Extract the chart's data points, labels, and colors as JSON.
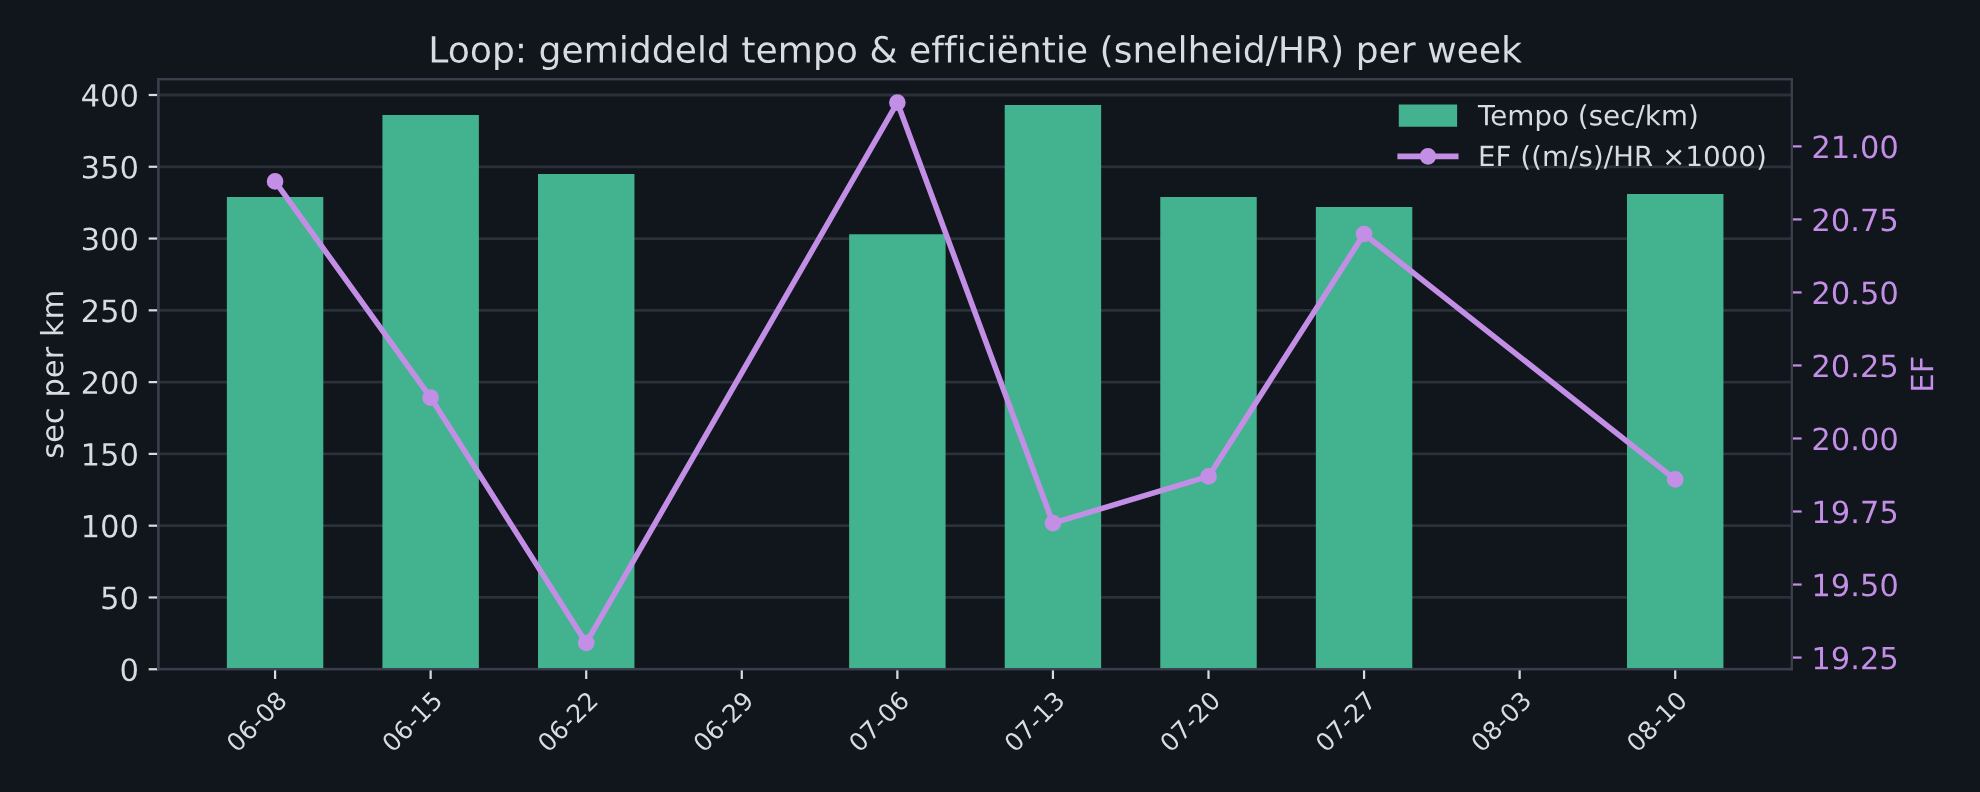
{
  "chart_data": {
    "type": "bar",
    "title": "Loop: gemiddeld tempo & efficiëntie (snelheid/HR) per week",
    "ylabel": "sec per km",
    "y2label": "EF",
    "categories": [
      "06-08",
      "06-15",
      "06-22",
      "06-29",
      "07-06",
      "07-13",
      "07-20",
      "07-27",
      "08-03",
      "08-10"
    ],
    "series": [
      {
        "name": "Tempo (sec/km)",
        "color": "#43b38f",
        "values": [
          329,
          386,
          345,
          null,
          303,
          393,
          329,
          322,
          null,
          331
        ]
      },
      {
        "name": "EF ((m/s)/HR ×1000)",
        "type": "line",
        "axis": "y2",
        "color": "#c38fe6",
        "marker": "circle",
        "line_style": "solid",
        "values": [
          20.88,
          20.14,
          19.3,
          null,
          21.15,
          19.71,
          19.87,
          20.7,
          null,
          19.86
        ]
      }
    ],
    "ylim": [
      0,
      411
    ],
    "yticks": [
      0,
      50,
      100,
      150,
      200,
      250,
      300,
      350,
      400
    ],
    "y2lim": [
      19.21,
      21.23
    ],
    "y2ticks": [
      {
        "value": 19.25,
        "label": "19.25"
      },
      {
        "value": 19.5,
        "label": "19.50"
      },
      {
        "value": 19.75,
        "label": "19.75"
      },
      {
        "value": 20.0,
        "label": "20.00"
      },
      {
        "value": 20.25,
        "label": "20.25"
      },
      {
        "value": 20.5,
        "label": "20.50"
      },
      {
        "value": 20.75,
        "label": "20.75"
      },
      {
        "value": 21.0,
        "label": "21.00"
      }
    ],
    "grid": "y",
    "legend": "top right"
  }
}
